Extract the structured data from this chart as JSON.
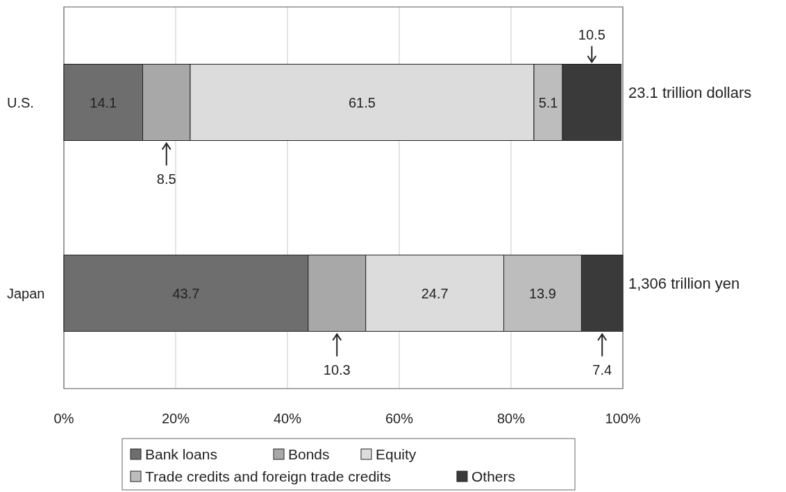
{
  "chart_data": {
    "type": "bar",
    "orientation": "horizontal",
    "stacked": true,
    "categories": [
      "U.S.",
      "Japan"
    ],
    "series": [
      {
        "name": "Bank loans",
        "color": "#6e6e6e",
        "values": [
          14.1,
          43.7
        ]
      },
      {
        "name": "Bonds",
        "color": "#a8a8a8",
        "values": [
          8.5,
          10.3
        ]
      },
      {
        "name": "Equity",
        "color": "#dcdcdc",
        "values": [
          61.5,
          24.7
        ]
      },
      {
        "name": "Trade credits and foreign trade credits",
        "color": "#bdbdbd",
        "values": [
          5.1,
          13.9
        ]
      },
      {
        "name": "Others",
        "color": "#3a3a3a",
        "values": [
          10.5,
          7.4
        ]
      }
    ],
    "xlim": [
      0,
      100
    ],
    "xticks": [
      {
        "value": 0,
        "label": "0%"
      },
      {
        "value": 20,
        "label": "20%"
      },
      {
        "value": 40,
        "label": "40%"
      },
      {
        "value": 60,
        "label": "60%"
      },
      {
        "value": 80,
        "label": "80%"
      },
      {
        "value": 100,
        "label": "100%"
      }
    ],
    "grid": "x",
    "legend": "bottom",
    "data_labels": true,
    "annotations": [
      {
        "text": "23.1 trillion dollars",
        "x": 100,
        "y": "U.S."
      },
      {
        "text": "1,306 trillion yen",
        "x": 100,
        "y": "Japan"
      }
    ]
  }
}
